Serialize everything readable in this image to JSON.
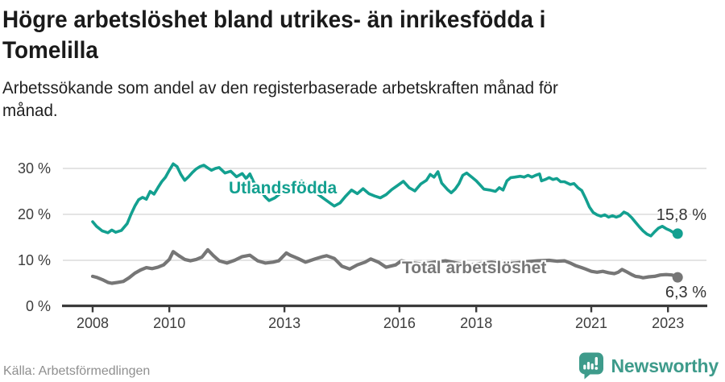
{
  "header": {
    "title_lines": [
      "Högre arbetslöshet bland utrikes- än inrikesfödda i",
      "Tomelilla"
    ],
    "subtitle_lines": [
      "Arbetssökande som andel av den registerbaserade arbetskraften månad för",
      "månad."
    ]
  },
  "chart_data": {
    "type": "line",
    "title": "Högre arbetslöshet bland utrikes- än inrikesfödda i Tomelilla",
    "subtitle": "Arbetssökande som andel av den registerbaserade arbetskraften månad för månad.",
    "xlabel": "",
    "ylabel": "",
    "x_range": [
      2008,
      2023.25
    ],
    "ylim": [
      0,
      32
    ],
    "grid": true,
    "x_tick_labels": [
      "2008",
      "2010",
      "2013",
      "2016",
      "2018",
      "2021",
      "2023"
    ],
    "x_tick_values": [
      2008,
      2010,
      2013,
      2016,
      2018,
      2021,
      2023
    ],
    "y_tick_labels": [
      "30 %",
      "20 %",
      "10 %",
      "0 %"
    ],
    "y_tick_values": [
      30,
      20,
      10,
      0
    ],
    "legend_position": "inline-labels",
    "series": [
      {
        "name": "Utlandsfödda",
        "color": "#13a090",
        "end_label": "15,8 %",
        "x": [
          2008.0,
          2008.1,
          2008.25,
          2008.4,
          2008.5,
          2008.6,
          2008.75,
          2008.9,
          2009.0,
          2009.1,
          2009.2,
          2009.3,
          2009.4,
          2009.5,
          2009.6,
          2009.7,
          2009.8,
          2009.9,
          2010.0,
          2010.1,
          2010.2,
          2010.3,
          2010.4,
          2010.5,
          2010.6,
          2010.7,
          2010.8,
          2010.9,
          2011.0,
          2011.1,
          2011.2,
          2011.3,
          2011.45,
          2011.6,
          2011.75,
          2011.9,
          2012.0,
          2012.1,
          2012.2,
          2012.35,
          2012.5,
          2012.6,
          2012.75,
          2012.9,
          2013.05,
          2013.2,
          2013.35,
          2013.45,
          2013.6,
          2013.75,
          2013.9,
          2014.05,
          2014.2,
          2014.3,
          2014.45,
          2014.6,
          2014.75,
          2014.9,
          2015.05,
          2015.2,
          2015.35,
          2015.5,
          2015.65,
          2015.8,
          2015.95,
          2016.1,
          2016.25,
          2016.4,
          2016.55,
          2016.7,
          2016.8,
          2016.9,
          2017.0,
          2017.1,
          2017.25,
          2017.35,
          2017.45,
          2017.55,
          2017.65,
          2017.75,
          2017.9,
          2018.0,
          2018.1,
          2018.2,
          2018.35,
          2018.5,
          2018.6,
          2018.7,
          2018.8,
          2018.9,
          2019.0,
          2019.15,
          2019.25,
          2019.35,
          2019.45,
          2019.55,
          2019.65,
          2019.7,
          2019.8,
          2019.9,
          2020.0,
          2020.1,
          2020.2,
          2020.3,
          2020.45,
          2020.55,
          2020.65,
          2020.75,
          2020.85,
          2020.95,
          2021.05,
          2021.15,
          2021.25,
          2021.35,
          2021.45,
          2021.55,
          2021.65,
          2021.75,
          2021.85,
          2021.95,
          2022.05,
          2022.15,
          2022.25,
          2022.35,
          2022.45,
          2022.55,
          2022.65,
          2022.75,
          2022.85,
          2022.95,
          2023.05,
          2023.15,
          2023.25
        ],
        "values": [
          18.4,
          17.4,
          16.4,
          16.0,
          16.6,
          16.1,
          16.5,
          18.0,
          20.0,
          21.8,
          23.2,
          23.7,
          23.3,
          25.0,
          24.4,
          25.8,
          27.1,
          28.1,
          29.6,
          31.0,
          30.4,
          28.7,
          27.4,
          28.2,
          29.1,
          29.9,
          30.4,
          30.7,
          30.1,
          29.6,
          30.0,
          30.2,
          29.0,
          29.4,
          28.2,
          28.9,
          27.8,
          28.8,
          27.0,
          25.5,
          23.8,
          23.0,
          23.6,
          24.6,
          25.4,
          26.3,
          26.9,
          27.3,
          26.1,
          25.2,
          24.2,
          23.3,
          22.4,
          21.8,
          22.5,
          24.0,
          25.3,
          24.5,
          25.6,
          24.5,
          24.0,
          23.6,
          24.3,
          25.4,
          26.3,
          27.2,
          25.8,
          25.1,
          26.6,
          27.4,
          28.7,
          28.1,
          29.3,
          26.8,
          25.4,
          24.7,
          25.5,
          26.7,
          28.5,
          29.0,
          28.0,
          27.3,
          26.4,
          25.5,
          25.3,
          25.0,
          25.8,
          25.3,
          27.3,
          28.0,
          28.1,
          28.3,
          28.1,
          28.5,
          28.1,
          28.5,
          28.8,
          27.3,
          27.6,
          28.0,
          27.6,
          27.8,
          27.1,
          27.1,
          26.5,
          26.7,
          25.8,
          25.2,
          23.5,
          21.6,
          20.4,
          19.9,
          19.6,
          19.9,
          19.4,
          19.7,
          19.4,
          19.7,
          20.5,
          20.1,
          19.3,
          18.3,
          17.3,
          16.4,
          15.7,
          15.3,
          16.2,
          17.0,
          17.4,
          16.9,
          16.5,
          16.0,
          15.8
        ]
      },
      {
        "name": "Total arbetslöshet",
        "color": "#767676",
        "end_label": "6,3 %",
        "x": [
          2008.0,
          2008.1,
          2008.25,
          2008.4,
          2008.5,
          2008.65,
          2008.8,
          2008.95,
          2009.1,
          2009.25,
          2009.4,
          2009.55,
          2009.7,
          2009.85,
          2010.0,
          2010.1,
          2010.25,
          2010.4,
          2010.55,
          2010.7,
          2010.85,
          2011.0,
          2011.15,
          2011.3,
          2011.5,
          2011.7,
          2011.9,
          2012.1,
          2012.3,
          2012.5,
          2012.7,
          2012.85,
          2013.05,
          2013.15,
          2013.35,
          2013.55,
          2013.8,
          2014.0,
          2014.1,
          2014.3,
          2014.5,
          2014.7,
          2014.9,
          2015.1,
          2015.25,
          2015.45,
          2015.65,
          2015.9,
          2016.05,
          2016.3,
          2016.6,
          2016.9,
          2017.2,
          2017.5,
          2017.8,
          2018.1,
          2018.4,
          2018.7,
          2019.0,
          2019.3,
          2019.6,
          2019.9,
          2020.1,
          2020.3,
          2020.45,
          2020.6,
          2020.75,
          2020.85,
          2021.0,
          2021.15,
          2021.3,
          2021.45,
          2021.6,
          2021.7,
          2021.8,
          2021.9,
          2022.05,
          2022.15,
          2022.25,
          2022.35,
          2022.5,
          2022.65,
          2022.8,
          2022.95,
          2023.1,
          2023.25
        ],
        "values": [
          6.5,
          6.3,
          5.8,
          5.2,
          5.0,
          5.2,
          5.4,
          6.2,
          7.2,
          7.9,
          8.4,
          8.2,
          8.5,
          9.0,
          10.2,
          11.9,
          11.0,
          10.2,
          9.9,
          10.2,
          10.7,
          12.3,
          11.0,
          9.9,
          9.4,
          10.0,
          10.8,
          11.1,
          9.9,
          9.4,
          9.6,
          9.9,
          11.6,
          11.1,
          10.4,
          9.6,
          10.3,
          10.8,
          11.0,
          10.4,
          8.7,
          8.1,
          9.0,
          9.6,
          10.3,
          9.6,
          8.5,
          9.0,
          9.9,
          9.5,
          9.2,
          9.6,
          9.9,
          9.4,
          9.0,
          9.3,
          9.6,
          9.2,
          9.4,
          9.7,
          9.9,
          10.0,
          9.8,
          9.9,
          9.4,
          8.8,
          8.4,
          8.1,
          7.6,
          7.4,
          7.6,
          7.3,
          7.1,
          7.4,
          8.0,
          7.6,
          6.9,
          6.5,
          6.4,
          6.2,
          6.4,
          6.5,
          6.8,
          6.9,
          6.8,
          6.3
        ]
      }
    ]
  },
  "footer": {
    "source": "Källa: Arbetsförmedlingen",
    "brand_name": "Newsworthy"
  },
  "colors": {
    "accent_teal": "#13a090",
    "series_gray": "#767676",
    "brand_teal": "#3e9b8b",
    "grid": "#dcdcdc",
    "axis": "#3b3b3b"
  }
}
